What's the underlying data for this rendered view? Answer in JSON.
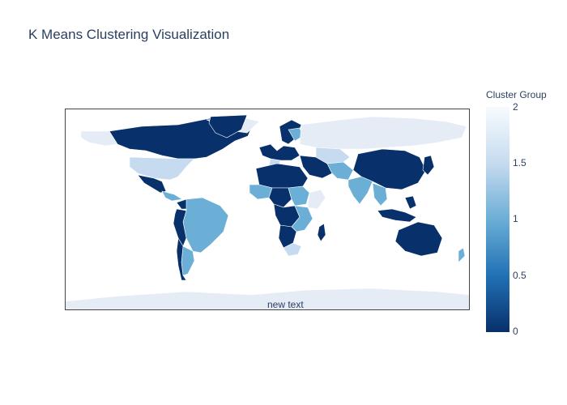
{
  "title": "K Means Clustering Visualization",
  "annotation": "new text",
  "colorbar": {
    "title": "Cluster Group",
    "min": 0,
    "max": 2,
    "ticks": [
      "2",
      "1.5",
      "1",
      "0.5",
      "0"
    ],
    "colorscale": [
      "#08306b",
      "#2171b5",
      "#6baed6",
      "#c6dbef",
      "#f7fbff"
    ]
  },
  "map": {
    "ocean_color": "#ffffff",
    "land_color": "#e5ecf6",
    "border_color": "#444444"
  }
}
